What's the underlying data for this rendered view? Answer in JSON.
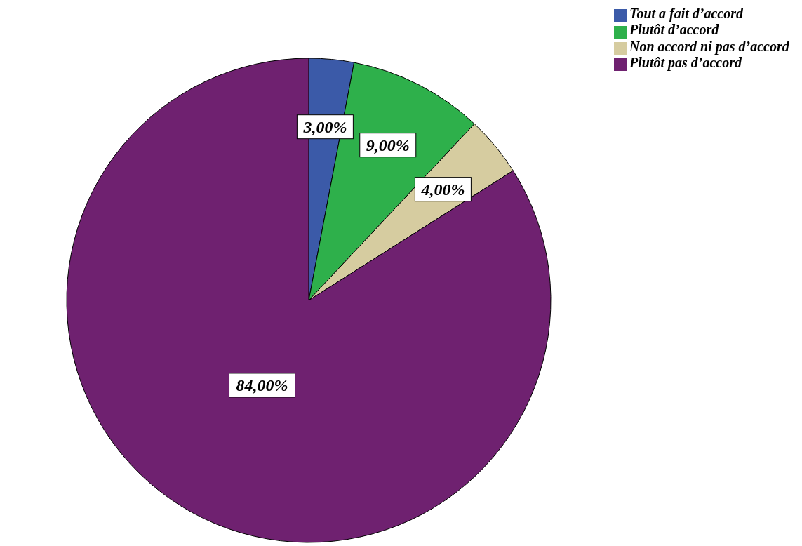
{
  "chart_data": {
    "type": "pie",
    "categories": [
      "Tout a fait d’accord",
      "Plutôt d’accord",
      "Non accord ni pas d’accord",
      "Plutôt pas d’accord"
    ],
    "values": [
      3,
      9,
      4,
      84
    ],
    "colors": [
      "#3b5aa8",
      "#2eb04b",
      "#d6cca0",
      "#6f2170"
    ],
    "value_labels": [
      "3,00%",
      "9,00%",
      "4,00%",
      "84,00%"
    ],
    "legend": "top right"
  }
}
